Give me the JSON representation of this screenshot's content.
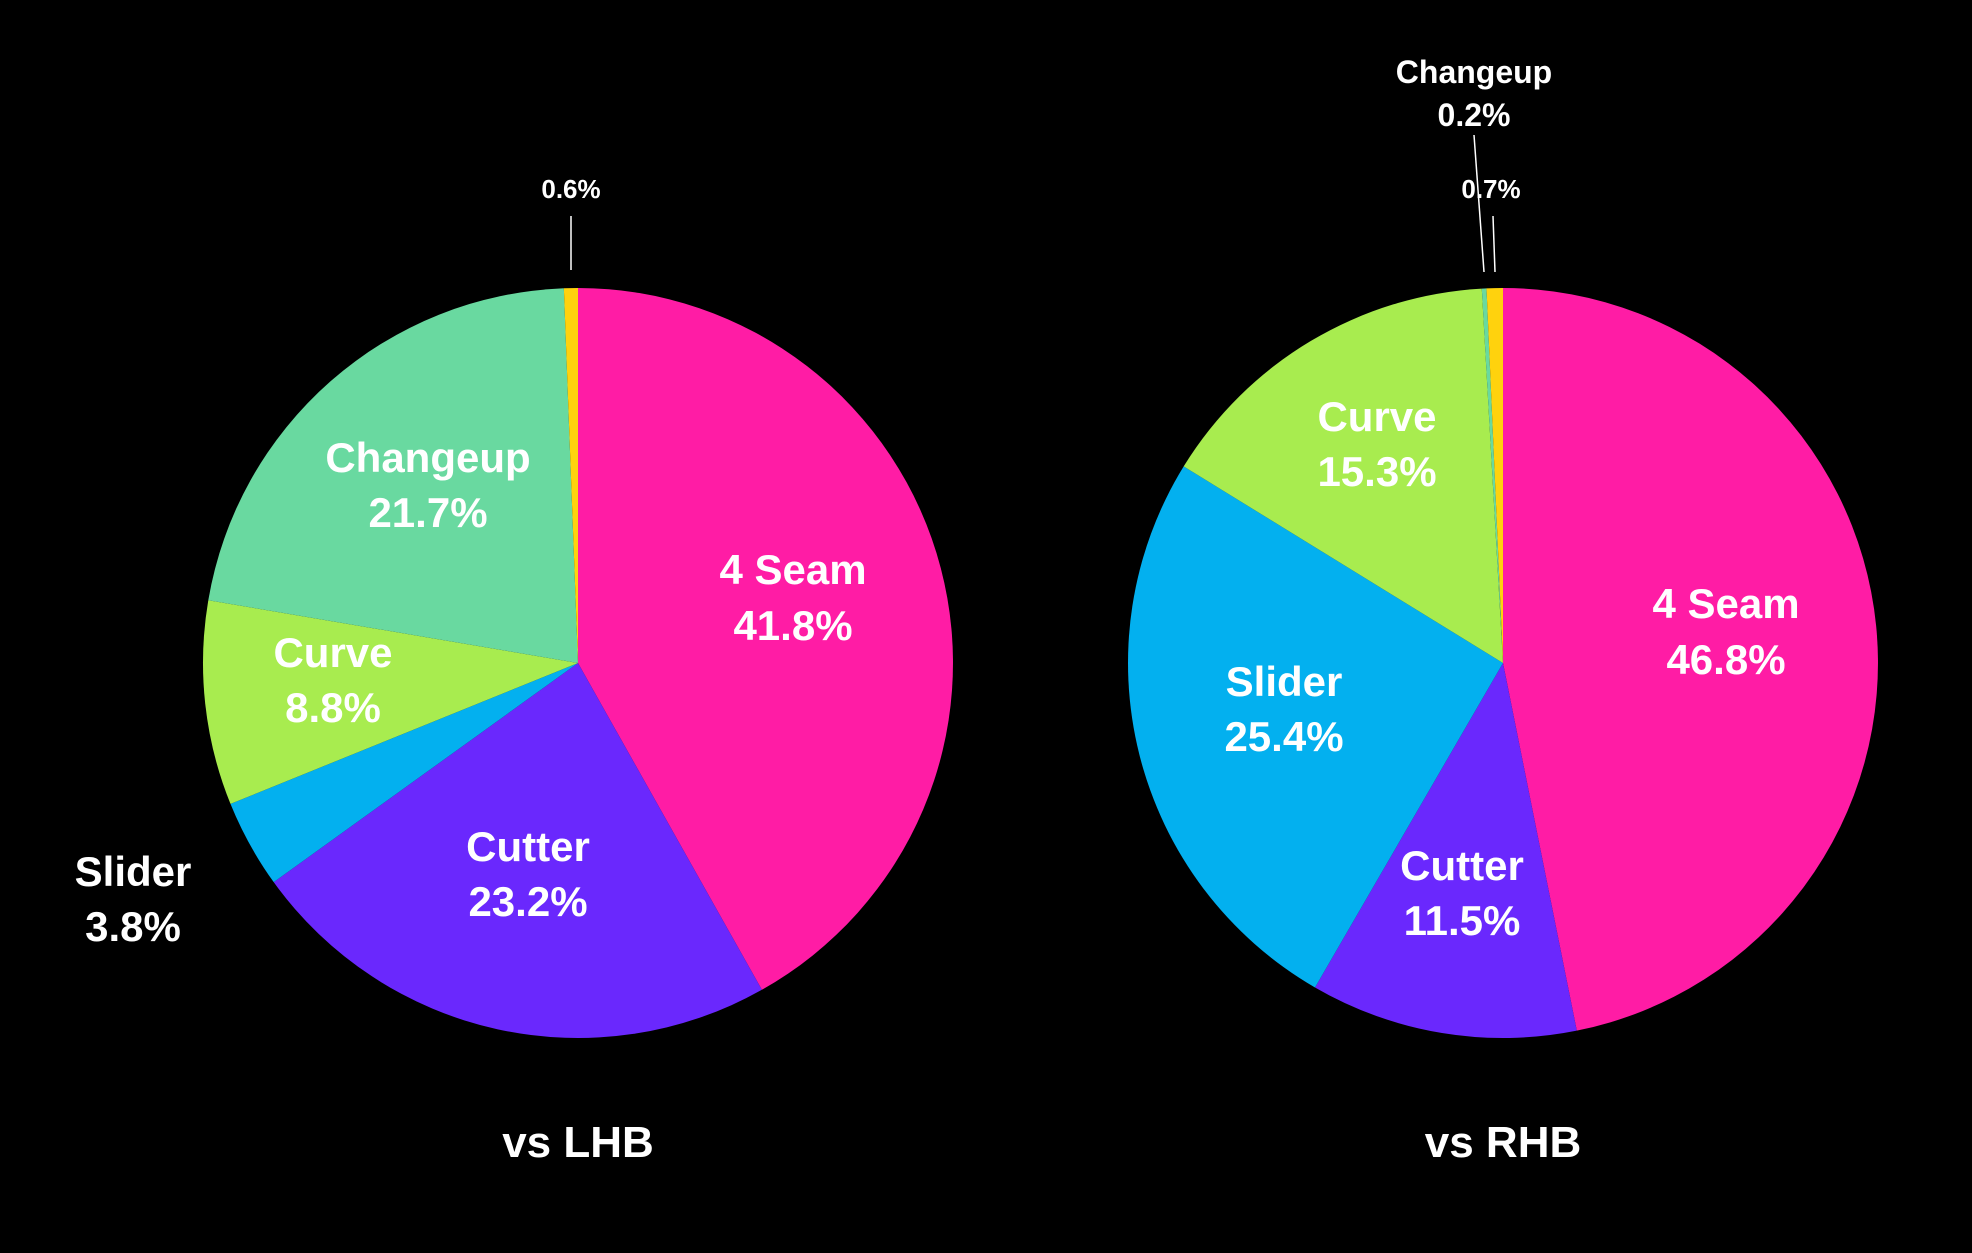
{
  "chart_data": [
    {
      "type": "pie",
      "title": "vs LHB",
      "slices": [
        {
          "label": "4 Seam",
          "value": 41.8,
          "value_label": "41.8%",
          "color": "#ff1ca5"
        },
        {
          "label": "Cutter",
          "value": 23.2,
          "value_label": "23.2%",
          "color": "#6a28fd"
        },
        {
          "label": "Slider",
          "value": 3.8,
          "value_label": "3.8%",
          "color": "#03b0ef"
        },
        {
          "label": "Curve",
          "value": 8.8,
          "value_label": "8.8%",
          "color": "#a8ec4f"
        },
        {
          "label": "Changeup",
          "value": 21.7,
          "value_label": "21.7%",
          "color": "#69d9a0"
        },
        {
          "label": "",
          "value": 0.6,
          "value_label": "0.6%",
          "color": "#ffd20d"
        }
      ]
    },
    {
      "type": "pie",
      "title": "vs RHB",
      "slices": [
        {
          "label": "4 Seam",
          "value": 46.8,
          "value_label": "46.8%",
          "color": "#ff1ca5"
        },
        {
          "label": "Cutter",
          "value": 11.5,
          "value_label": "11.5%",
          "color": "#6a28fd"
        },
        {
          "label": "Slider",
          "value": 25.4,
          "value_label": "25.4%",
          "color": "#03b0ef"
        },
        {
          "label": "Curve",
          "value": 15.3,
          "value_label": "15.3%",
          "color": "#a8ec4f"
        },
        {
          "label": "Changeup",
          "value": 0.2,
          "value_label": "0.2%",
          "color": "#69d9a0"
        },
        {
          "label": "",
          "value": 0.7,
          "value_label": "0.7%",
          "color": "#ffd20d"
        }
      ]
    }
  ]
}
